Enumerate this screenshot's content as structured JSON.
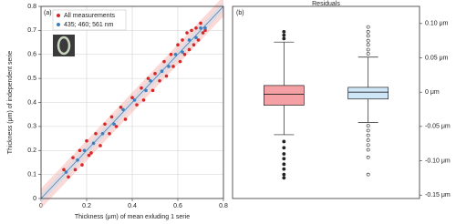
{
  "chart_data": [
    {
      "type": "scatter",
      "panel_label": "(a)",
      "x_label": "Thickness (μm) of mean exluding 1 serie",
      "y_label": "Thickness (μm) of independent serie",
      "xlim": [
        0,
        0.8
      ],
      "ylim": [
        0,
        0.8
      ],
      "xticks": [
        0,
        0.2,
        0.4,
        0.6,
        0.8
      ],
      "yticks": [
        0,
        0.1,
        0.2,
        0.3,
        0.4,
        0.5,
        0.6,
        0.7,
        0.8
      ],
      "grid": true,
      "legend": "upper left",
      "series": [
        {
          "name": "All measurements",
          "color": "#d62728",
          "x": [
            0.1,
            0.12,
            0.14,
            0.15,
            0.17,
            0.18,
            0.2,
            0.21,
            0.22,
            0.24,
            0.26,
            0.28,
            0.3,
            0.31,
            0.33,
            0.35,
            0.37,
            0.4,
            0.42,
            0.44,
            0.45,
            0.47,
            0.49,
            0.5,
            0.52,
            0.54,
            0.55,
            0.57,
            0.58,
            0.6,
            0.61,
            0.62,
            0.63,
            0.64,
            0.65,
            0.66,
            0.67,
            0.68,
            0.69,
            0.7,
            0.71,
            0.72
          ],
          "values": [
            0.12,
            0.09,
            0.17,
            0.12,
            0.2,
            0.14,
            0.24,
            0.18,
            0.19,
            0.27,
            0.22,
            0.31,
            0.27,
            0.34,
            0.3,
            0.38,
            0.33,
            0.42,
            0.39,
            0.46,
            0.41,
            0.5,
            0.45,
            0.52,
            0.49,
            0.57,
            0.51,
            0.6,
            0.55,
            0.64,
            0.57,
            0.66,
            0.6,
            0.69,
            0.62,
            0.7,
            0.64,
            0.71,
            0.66,
            0.73,
            0.69,
            0.7
          ]
        },
        {
          "name": "435; 460; 561 nm",
          "color": "#3a7fc1",
          "x": [
            0.11,
            0.16,
            0.19,
            0.23,
            0.27,
            0.32,
            0.36,
            0.41,
            0.46,
            0.48,
            0.53,
            0.56,
            0.59,
            0.62,
            0.65,
            0.68,
            0.7,
            0.72
          ],
          "values": [
            0.11,
            0.16,
            0.2,
            0.23,
            0.27,
            0.31,
            0.37,
            0.41,
            0.45,
            0.49,
            0.53,
            0.55,
            0.6,
            0.61,
            0.66,
            0.67,
            0.71,
            0.71
          ]
        }
      ]
    },
    {
      "type": "box",
      "panel_label": "(b)",
      "title": "Residuals",
      "ylim": [
        -0.155,
        0.125
      ],
      "yticks": [
        {
          "value": 0.1,
          "label": "0.10 μm"
        },
        {
          "value": 0.05,
          "label": "0.05 μm"
        },
        {
          "value": 0,
          "label": "0 μm"
        },
        {
          "value": -0.05,
          "label": "-0.05 μm"
        },
        {
          "value": -0.1,
          "label": "-0.10 μm"
        },
        {
          "value": -0.15,
          "label": "-0.15 μm"
        }
      ],
      "boxes": [
        {
          "color": "#f4a0a4",
          "whisker_high": 0.073,
          "q3": 0.0097,
          "median": -0.003,
          "q1": -0.019,
          "whisker_low": -0.062,
          "outliers": [
            0.088,
            0.083,
            0.078,
            -0.072,
            -0.081,
            -0.09,
            -0.097,
            -0.105,
            -0.112,
            -0.12,
            -0.125
          ]
        },
        {
          "color": "#cfe6f7",
          "whisker_high": 0.051,
          "q3": 0.007,
          "median": 0,
          "q1": -0.01,
          "whisker_low": -0.044,
          "outliers": [
            0.095,
            0.088,
            0.082,
            0.075,
            0.069,
            0.062,
            0.056,
            -0.049,
            -0.056,
            -0.063,
            -0.07,
            -0.077,
            -0.084,
            -0.095,
            -0.12
          ]
        }
      ]
    }
  ]
}
